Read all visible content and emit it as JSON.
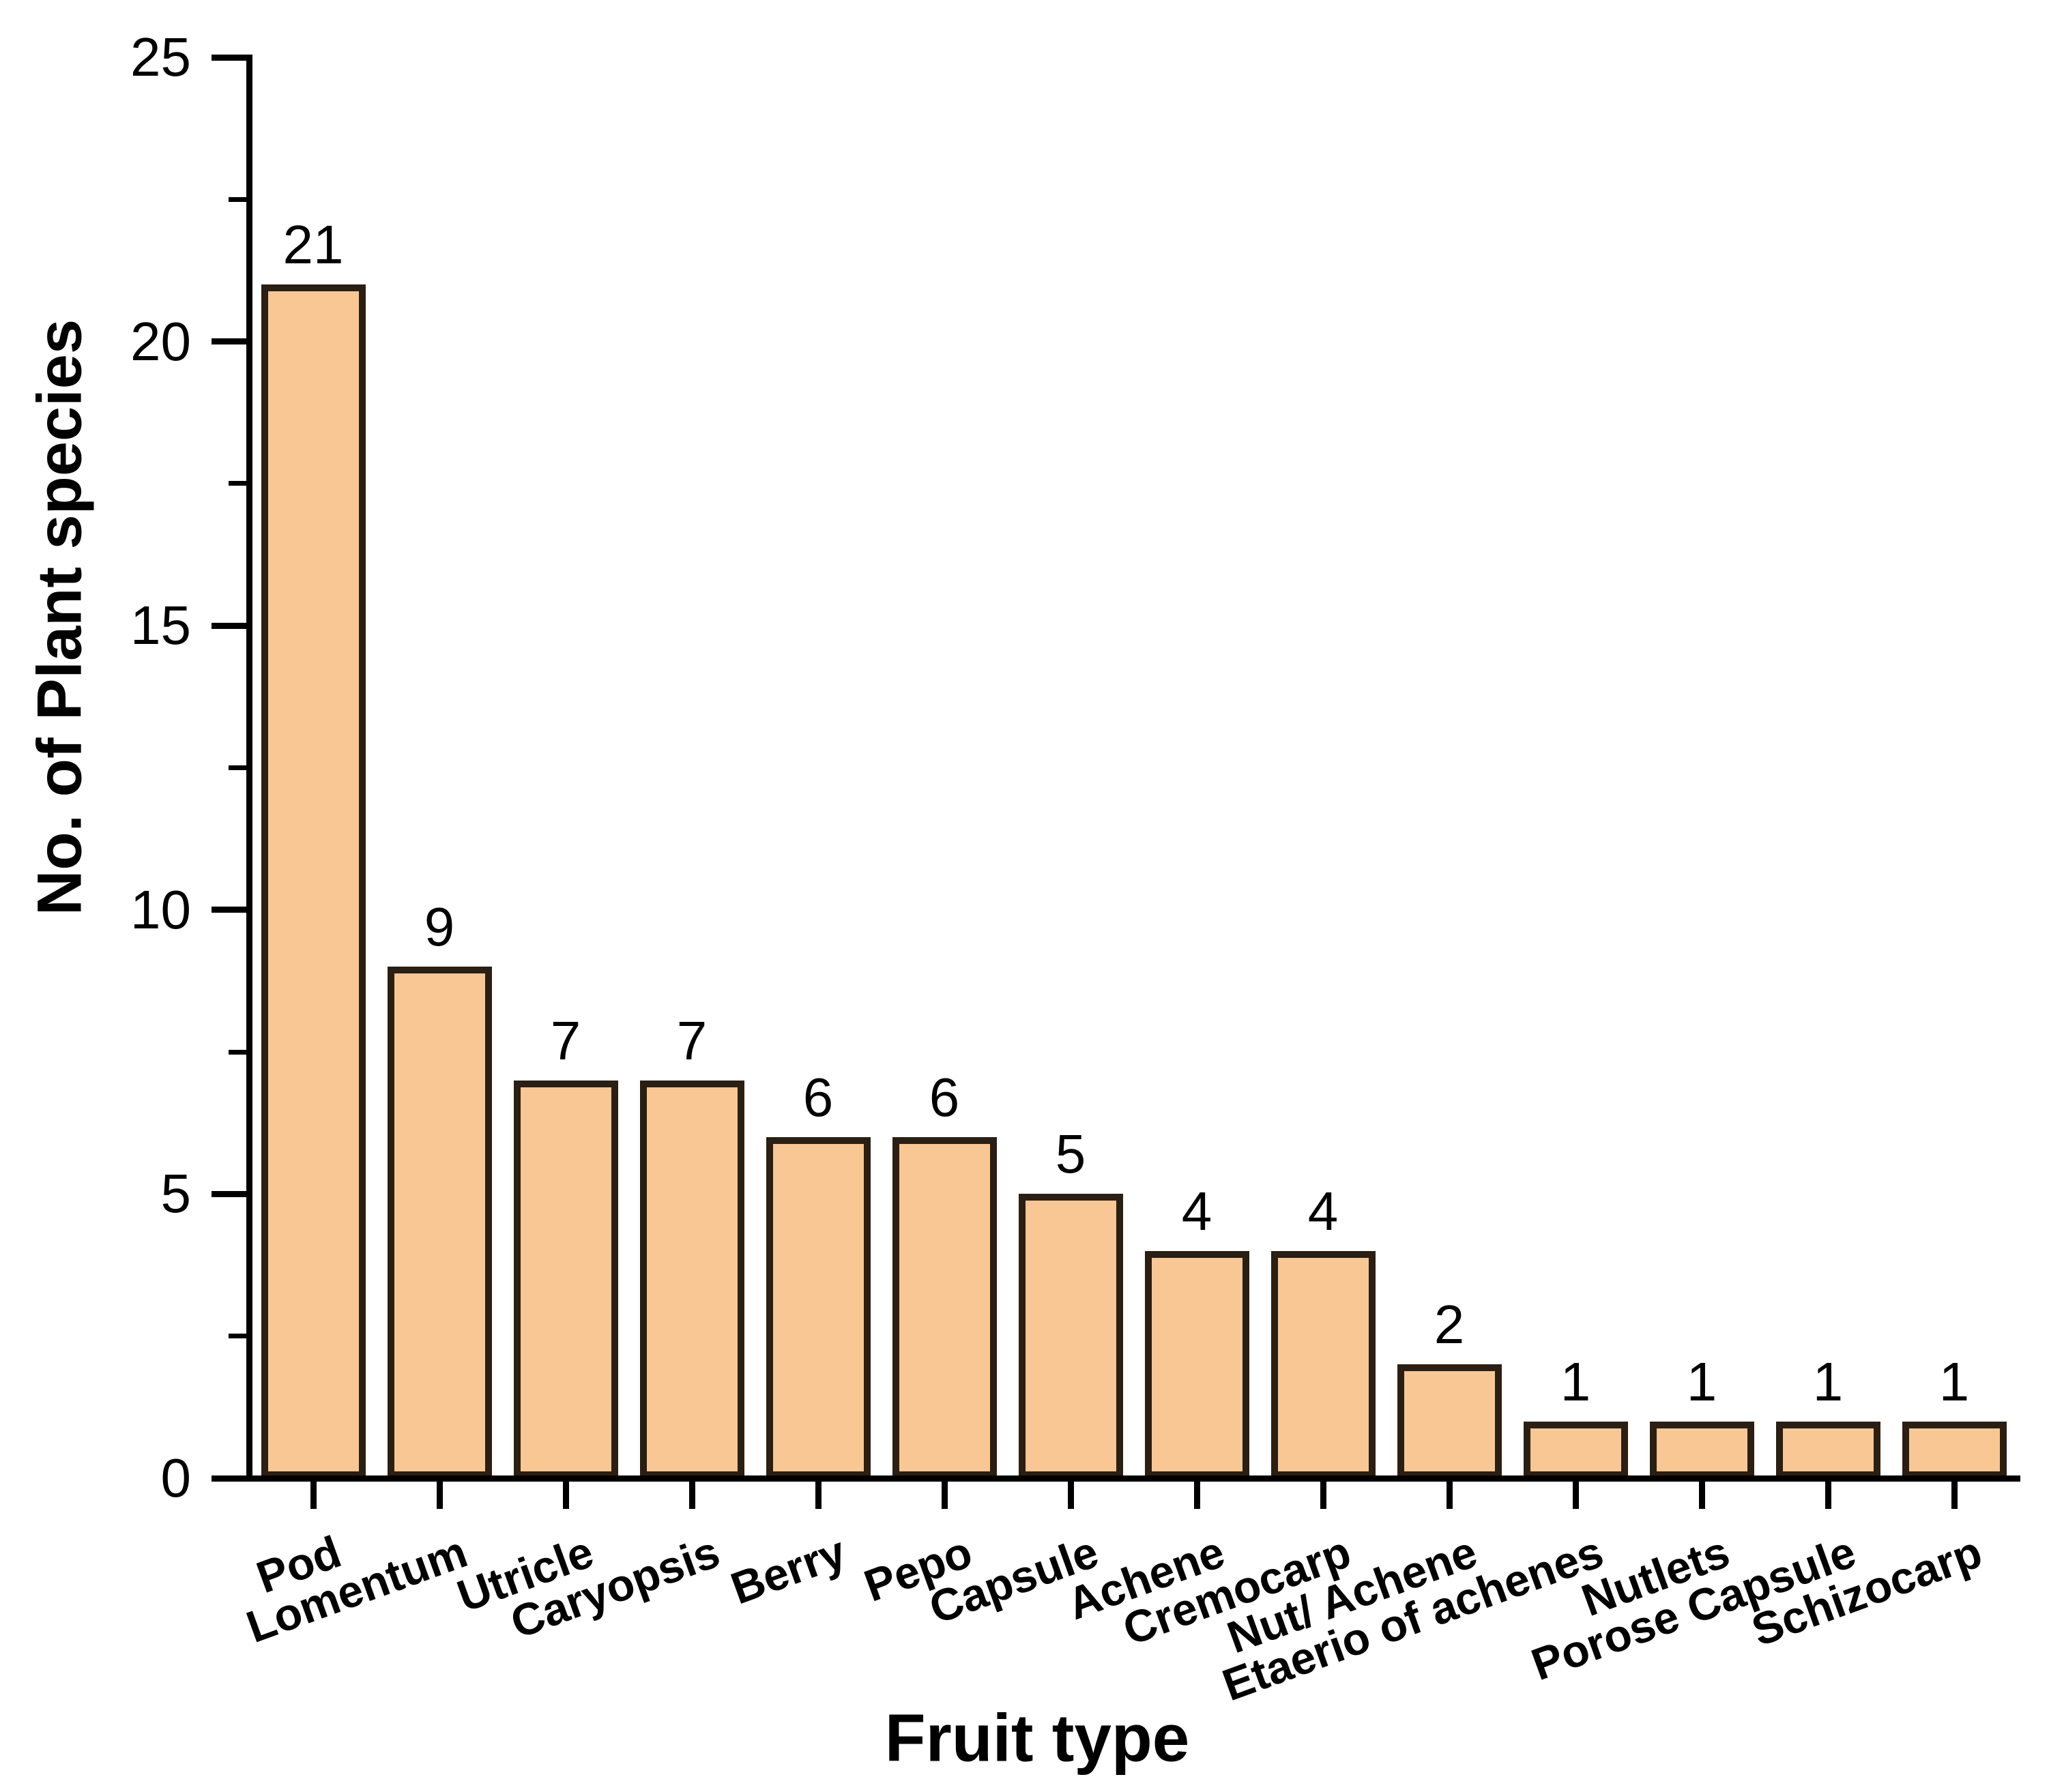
{
  "chart_data": {
    "type": "bar",
    "title": "",
    "xlabel": "Fruit type",
    "ylabel": "No. of Plant species",
    "categories": [
      "Pod",
      "Lomentum",
      "Utricle",
      "Caryopsis",
      "Berry",
      "Pepo",
      "Capsule",
      "Achene",
      "Cremocarp",
      "Nut/ Achene",
      "Etaerio of achenes",
      "Nutlets",
      "Porose Capsule",
      "Schizocarp"
    ],
    "values": [
      21,
      9,
      7,
      7,
      6,
      6,
      5,
      4,
      4,
      2,
      1,
      1,
      1,
      1
    ],
    "ylim": [
      0,
      25
    ],
    "y_major_ticks": [
      0,
      5,
      10,
      15,
      20,
      25
    ],
    "y_minor_ticks": [
      2.5,
      7.5,
      12.5,
      17.5,
      22.5
    ],
    "grid": "off",
    "legend": "none",
    "bar_fill_color": "#f8c793",
    "bar_border_color": "#2b1e12",
    "axis_color": "#000000",
    "text_color": "#000000",
    "background_color": "#ffffff"
  }
}
